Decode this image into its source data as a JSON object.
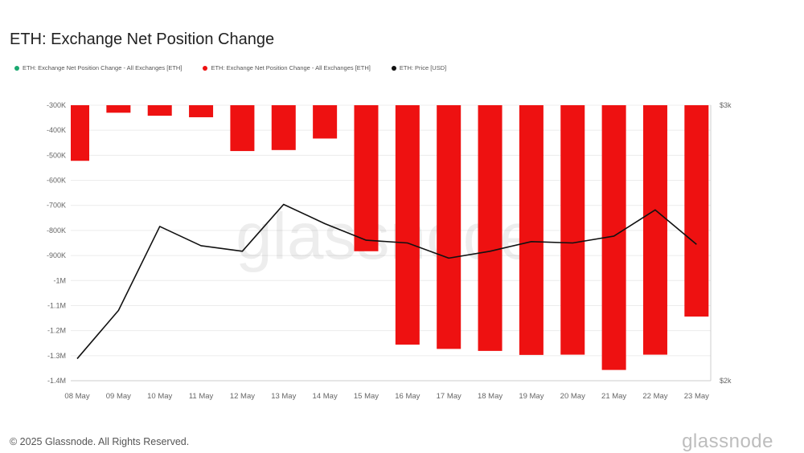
{
  "title": "ETH: Exchange Net Position Change",
  "legend": [
    {
      "label": "ETH: Exchange Net Position Change - All Exchanges [ETH]",
      "color": "#1aa870"
    },
    {
      "label": "ETH: Exchange Net Position Change - All Exchanges [ETH]",
      "color": "#ee1111"
    },
    {
      "label": "ETH: Price [USD]",
      "color": "#111111"
    }
  ],
  "footer": "© 2025 Glassnode. All Rights Reserved.",
  "brand": "glassnode",
  "watermark": "glassnode",
  "chart_data": {
    "type": "bar",
    "title": "ETH: Exchange Net Position Change",
    "categories": [
      "08 May",
      "09 May",
      "10 May",
      "11 May",
      "12 May",
      "13 May",
      "14 May",
      "15 May",
      "16 May",
      "17 May",
      "18 May",
      "19 May",
      "20 May",
      "21 May",
      "22 May",
      "23 May"
    ],
    "series": [
      {
        "name": "ETH: Exchange Net Position Change - All Exchanges [ETH]",
        "type": "bar",
        "axis": "left",
        "color": "#ee1111",
        "values": [
          -522000,
          -330000,
          -342000,
          -348000,
          -483000,
          -479000,
          -433000,
          -883000,
          -1256000,
          -1273000,
          -1281000,
          -1297000,
          -1296000,
          -1357000,
          -1296000,
          -1144000
        ]
      },
      {
        "name": "ETH: Price [USD]",
        "type": "line",
        "axis": "right",
        "color": "#111111",
        "values": [
          2080,
          2255,
          2560,
          2490,
          2470,
          2640,
          2570,
          2510,
          2500,
          2445,
          2470,
          2505,
          2500,
          2525,
          2620,
          2495
        ]
      }
    ],
    "y_left": {
      "ticks": [
        -300000,
        -400000,
        -500000,
        -600000,
        -700000,
        -800000,
        -900000,
        -1000000,
        -1100000,
        -1200000,
        -1300000,
        -1400000
      ],
      "tick_labels": [
        "-300K",
        "-400K",
        "-500K",
        "-600K",
        "-700K",
        "-800K",
        "-900K",
        "-1M",
        "-1.1M",
        "-1.2M",
        "-1.3M",
        "-1.4M"
      ],
      "ylim": [
        -1400000,
        -300000
      ]
    },
    "y_right": {
      "ticks": [
        3000,
        2000
      ],
      "tick_labels": [
        "$3k",
        "$2k"
      ],
      "ylim": [
        2000,
        3000
      ]
    },
    "grid": true,
    "legend_position": "top-left"
  }
}
